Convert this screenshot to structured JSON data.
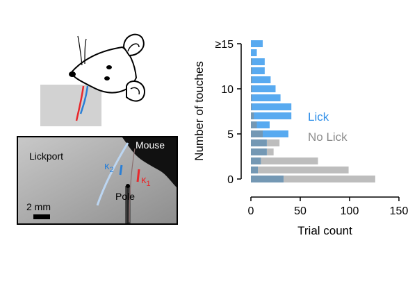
{
  "panel_photo": {
    "lickport_label": "Lickport",
    "mouse_label": "Mouse",
    "pole_label": "Pole",
    "k2_letter": "κ",
    "k2_sub": "2",
    "k1_letter": "κ",
    "k1_sub": "1",
    "scale_label": "2 mm"
  },
  "colors": {
    "lick": "#58aaf0",
    "no_lick": "#bdbdbd",
    "overlap": "#7498b4",
    "lick_text": "#2f8fe8",
    "no_lick_text": "#8c8c8c",
    "kappa1": "#e8282c",
    "kappa2": "#2a7fd6"
  },
  "chart_data": {
    "type": "bar",
    "orientation": "horizontal",
    "title": "",
    "xlabel": "Trial count",
    "ylabel": "Number of touches",
    "xlim": [
      0,
      150
    ],
    "x_ticks": [
      "0",
      "50",
      "100",
      "150"
    ],
    "x_tick_values": [
      0,
      50,
      100,
      150
    ],
    "y_ticks": [
      "0",
      "5",
      "10",
      "≥15"
    ],
    "y_tick_values": [
      0,
      5,
      10,
      15
    ],
    "categories": [
      0,
      1,
      2,
      3,
      4,
      5,
      6,
      7,
      8,
      9,
      10,
      11,
      12,
      13,
      14,
      15
    ],
    "series": [
      {
        "name": "Lick",
        "values": [
          33,
          7,
          10,
          16,
          16,
          38,
          19,
          41,
          41,
          30,
          25,
          20,
          14,
          14,
          6,
          12
        ]
      },
      {
        "name": "No Lick",
        "values": [
          126,
          99,
          68,
          23,
          29,
          12,
          6,
          3,
          1,
          1,
          1,
          1,
          1,
          1,
          0,
          0
        ]
      }
    ],
    "legend": [
      "Lick",
      "No Lick"
    ],
    "legend_position": "right"
  }
}
